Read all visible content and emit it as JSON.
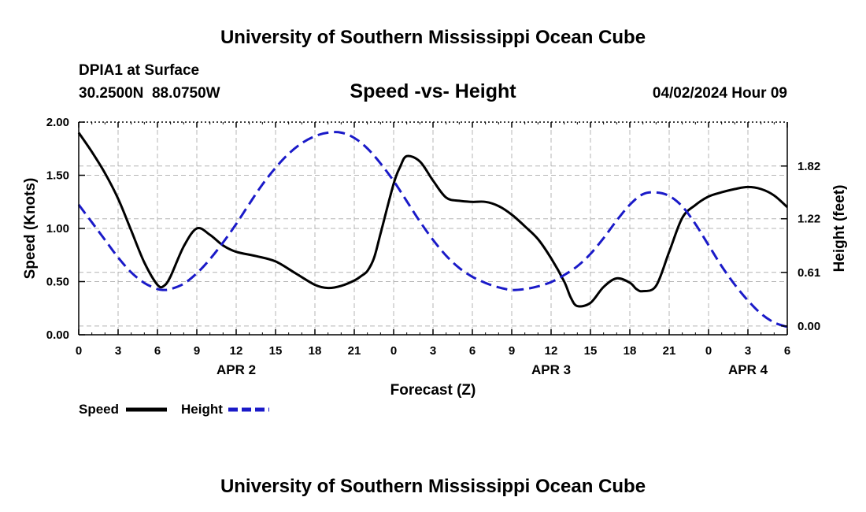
{
  "header": {
    "title_top": "University of Southern Mississippi Ocean Cube",
    "station": "DPIA1 at Surface",
    "coords": "30.2500N  88.0750W",
    "chart_title": "Speed -vs- Height",
    "date": "04/02/2024 Hour 09",
    "title_bottom": "University of Southern Mississippi Ocean Cube"
  },
  "legend": {
    "speed_label": "Speed",
    "height_label": "Height"
  },
  "colors": {
    "speed": "#000000",
    "height": "#1a1ac8",
    "grid": "#b4b4b4"
  },
  "chart_data": {
    "type": "line",
    "title": "Speed -vs- Height",
    "xlabel": "Forecast (Z)",
    "ylabel": "Speed (Knots)",
    "y2label": "Height (feet)",
    "xlim": [
      0,
      54
    ],
    "ylim": [
      0,
      2.0
    ],
    "y2lim": [
      -0.1,
      2.32
    ],
    "x_ticks": [
      0,
      3,
      6,
      9,
      12,
      15,
      18,
      21,
      24,
      27,
      30,
      33,
      36,
      39,
      42,
      45,
      48,
      51,
      54
    ],
    "x_tick_labels": [
      "0",
      "3",
      "6",
      "9",
      "12",
      "15",
      "18",
      "21",
      "0",
      "3",
      "6",
      "9",
      "12",
      "15",
      "18",
      "21",
      "0",
      "3",
      "6"
    ],
    "y_ticks": [
      0.0,
      0.5,
      1.0,
      1.5,
      2.0
    ],
    "y_tick_labels": [
      "0.00",
      "0.50",
      "1.00",
      "1.50",
      "2.00"
    ],
    "y2_ticks": [
      0.0,
      0.61,
      1.22,
      1.82
    ],
    "y2_tick_labels": [
      "0.00",
      "0.61",
      "1.22",
      "1.82"
    ],
    "date_labels": [
      {
        "x": 12,
        "text": "APR 2"
      },
      {
        "x": 36,
        "text": "APR 3"
      },
      {
        "x": 51,
        "text": "APR 4"
      }
    ],
    "grid": true,
    "legend_position": "bottom-left",
    "series": [
      {
        "name": "Speed",
        "axis": "left",
        "style": "solid",
        "x": [
          0,
          1,
          2,
          3,
          4,
          5,
          6,
          6.5,
          7,
          8,
          9,
          10,
          11,
          12,
          13.5,
          15,
          16.5,
          18,
          19,
          20,
          21,
          21.5,
          22,
          22.5,
          23,
          24,
          24.5,
          25,
          26,
          27,
          28,
          29,
          30,
          31,
          32,
          33,
          34,
          35,
          36,
          37,
          37.5,
          38,
          39,
          40,
          41,
          42,
          42.5,
          43,
          44,
          45,
          46,
          47,
          48,
          49,
          50,
          51,
          52,
          53,
          54
        ],
        "values": [
          1.9,
          1.72,
          1.52,
          1.28,
          0.98,
          0.68,
          0.47,
          0.46,
          0.55,
          0.83,
          1.0,
          0.94,
          0.84,
          0.78,
          0.74,
          0.69,
          0.58,
          0.47,
          0.44,
          0.46,
          0.51,
          0.55,
          0.6,
          0.72,
          0.95,
          1.42,
          1.58,
          1.68,
          1.63,
          1.45,
          1.29,
          1.26,
          1.25,
          1.25,
          1.21,
          1.13,
          1.02,
          0.9,
          0.72,
          0.5,
          0.35,
          0.27,
          0.3,
          0.45,
          0.53,
          0.49,
          0.43,
          0.41,
          0.46,
          0.78,
          1.1,
          1.22,
          1.3,
          1.34,
          1.37,
          1.39,
          1.37,
          1.31,
          1.2
        ]
      },
      {
        "name": "Height",
        "axis": "right",
        "style": "dashed",
        "x": [
          0,
          1,
          2,
          3,
          4,
          5,
          6,
          6.5,
          7,
          8,
          9,
          10,
          11,
          12,
          13,
          14,
          15,
          16,
          17,
          18,
          19,
          20,
          21,
          22,
          23,
          24,
          25,
          26,
          27,
          28,
          29,
          30,
          31,
          32,
          33,
          34,
          35,
          36,
          37,
          38,
          39,
          40,
          41,
          42,
          43,
          44,
          45,
          46,
          47,
          48,
          49,
          50,
          51,
          52,
          53,
          54
        ],
        "values": [
          1.38,
          1.18,
          0.98,
          0.78,
          0.61,
          0.49,
          0.42,
          0.41,
          0.42,
          0.48,
          0.6,
          0.76,
          0.95,
          1.16,
          1.39,
          1.61,
          1.8,
          1.96,
          2.08,
          2.16,
          2.2,
          2.2,
          2.14,
          2.02,
          1.85,
          1.65,
          1.42,
          1.19,
          0.98,
          0.8,
          0.66,
          0.56,
          0.49,
          0.44,
          0.41,
          0.42,
          0.45,
          0.5,
          0.58,
          0.68,
          0.82,
          1.0,
          1.2,
          1.38,
          1.5,
          1.52,
          1.48,
          1.36,
          1.16,
          0.92,
          0.68,
          0.47,
          0.29,
          0.14,
          0.04,
          -0.01
        ]
      }
    ]
  }
}
